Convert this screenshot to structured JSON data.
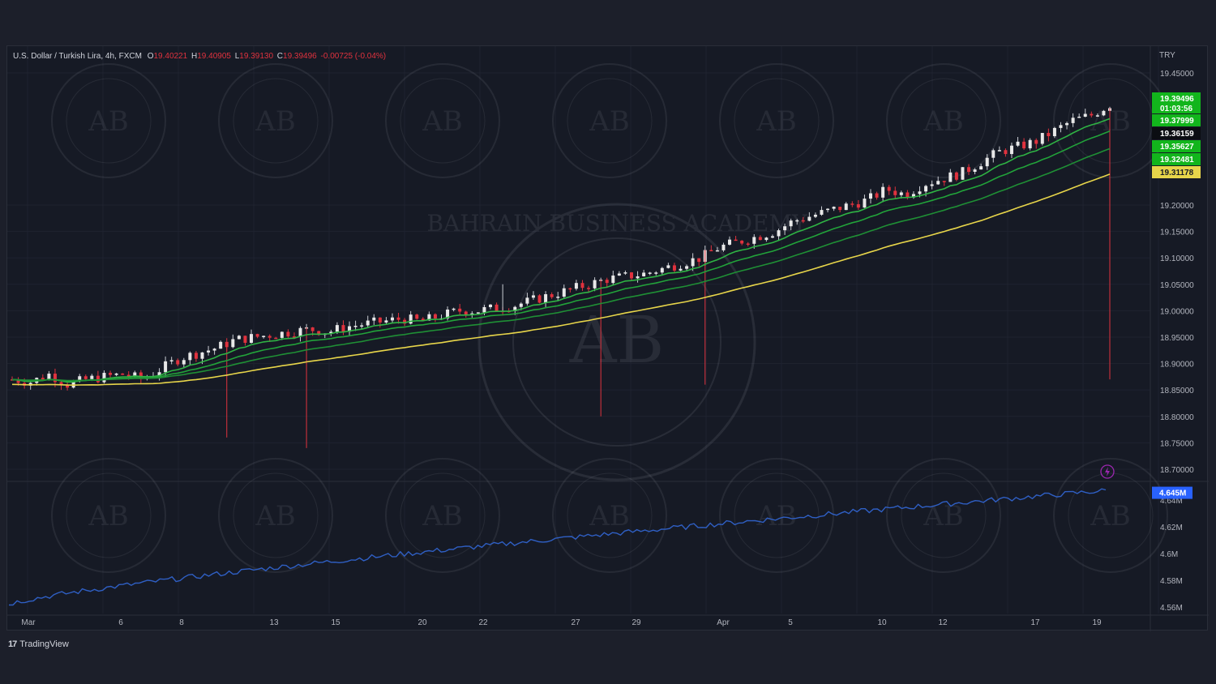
{
  "legend": {
    "symbol": "U.S. Dollar / Turkish Lira, 4h, FXCM",
    "o_label": "O",
    "o_value": "19.40221",
    "h_label": "H",
    "h_value": "19.40905",
    "l_label": "L",
    "l_value": "19.39130",
    "c_label": "C",
    "c_value": "19.39496",
    "change": "-0.00725 (-0.04%)"
  },
  "currency_label": "TRY",
  "brand": {
    "name": "TradingView",
    "logo_glyph": "17"
  },
  "watermark": {
    "ring_text": "BAHRAIN BUSINESS ACADEMY",
    "monogram": "AB"
  },
  "colors": {
    "up": "#e8e8e8",
    "down": "#e0323e",
    "wick": "#8a8d96",
    "ema_fast": "#2fb344",
    "ema_mid": "#22a33a",
    "ema_slow": "#1f8f35",
    "ema_yellow": "#e7d54a",
    "volume_line": "#2f5fc4",
    "tag_green": "#12b51c",
    "tag_yellow": "#e7d54a",
    "tag_blue": "#2962ff"
  },
  "price_axis": {
    "ticks": [
      "19.45000",
      "19.20000",
      "19.15000",
      "19.10000",
      "19.05000",
      "19.00000",
      "18.95000",
      "18.90000",
      "18.85000",
      "18.80000",
      "18.75000",
      "18.70000"
    ],
    "tags": [
      {
        "value": "19.39496",
        "sub": "01:03:56",
        "kind": "green"
      },
      {
        "value": "19.37999",
        "kind": "green"
      },
      {
        "value": "19.36159",
        "kind": "black"
      },
      {
        "value": "19.35627",
        "kind": "green"
      },
      {
        "value": "19.32481",
        "kind": "green"
      },
      {
        "value": "19.31178",
        "kind": "yellow"
      }
    ]
  },
  "volume_axis": {
    "ticks": [
      "4.64M",
      "4.62M",
      "4.6M",
      "4.58M",
      "4.56M"
    ],
    "tag": "4.645M"
  },
  "time_axis": [
    "Mar",
    "6",
    "8",
    "13",
    "15",
    "20",
    "22",
    "27",
    "29",
    "Apr",
    "5",
    "10",
    "12",
    "17",
    "19"
  ],
  "chart_data": {
    "type": "candlestick",
    "title": "U.S. Dollar / Turkish Lira, 4h, FXCM",
    "price_range": [
      18.68,
      19.47
    ],
    "x": [
      "Mar",
      "6",
      "8",
      "13",
      "15",
      "20",
      "22",
      "27",
      "29",
      "Apr",
      "5",
      "10",
      "12",
      "17",
      "19"
    ],
    "close_path": [
      18.87,
      18.865,
      18.88,
      18.86,
      18.87,
      18.875,
      18.88,
      18.87,
      18.89,
      18.91,
      18.92,
      18.93,
      18.945,
      18.95,
      18.955,
      18.96,
      18.965,
      18.96,
      18.97,
      18.975,
      18.98,
      18.985,
      18.98,
      18.99,
      19.0,
      19.0,
      19.005,
      19.01,
      19.02,
      19.03,
      19.04,
      19.05,
      19.06,
      19.065,
      19.07,
      19.08,
      19.09,
      19.1,
      19.12,
      19.13,
      19.14,
      19.15,
      19.17,
      19.18,
      19.19,
      19.2,
      19.21,
      19.23,
      19.22,
      19.24,
      19.25,
      19.26,
      19.28,
      19.3,
      19.31,
      19.32,
      19.34,
      19.36,
      19.37,
      19.39
    ],
    "series": [
      {
        "name": "19.37999",
        "last": 19.37999
      },
      {
        "name": "19.35627",
        "last": 19.35627
      },
      {
        "name": "19.32481",
        "last": 19.32481
      },
      {
        "name": "19.31178",
        "last": 19.31178
      }
    ],
    "volume_range": [
      4.555,
      4.652
    ],
    "volume_last": 4.645
  }
}
